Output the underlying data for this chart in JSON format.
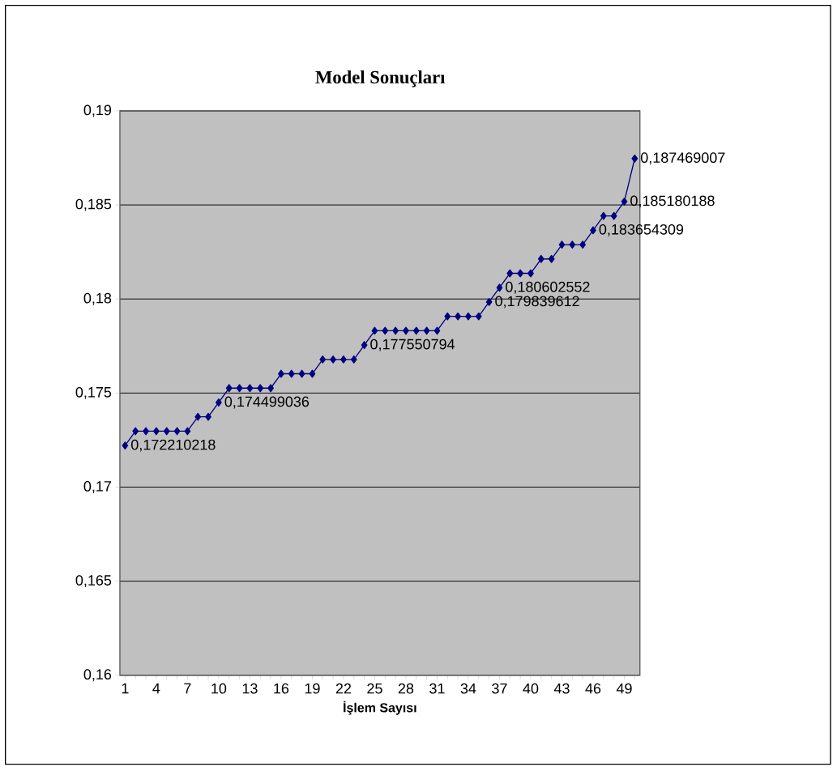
{
  "chart_data": {
    "type": "line",
    "title": "Model Sonuçları",
    "xlabel": "İşlem Sayısı",
    "categories": [
      "1",
      null,
      null,
      "4",
      null,
      null,
      "7",
      null,
      null,
      "10",
      null,
      null,
      "13",
      null,
      null,
      "16",
      null,
      null,
      "19",
      null,
      null,
      "22",
      null,
      null,
      "25",
      null,
      null,
      "28",
      null,
      null,
      "31",
      null,
      null,
      "34",
      null,
      null,
      "37",
      null,
      null,
      "40",
      null,
      null,
      "43",
      null,
      null,
      "46",
      null,
      null,
      "49",
      null
    ],
    "values": [
      0.172210218,
      0.172973157,
      0.172973157,
      0.172973157,
      0.172973157,
      0.172973157,
      0.172973157,
      0.173736097,
      0.173736097,
      0.174499036,
      0.175261975,
      0.175261975,
      0.175261975,
      0.175261975,
      0.175261975,
      0.176024915,
      0.176024915,
      0.176024915,
      0.176024915,
      0.176787854,
      0.176787854,
      0.176787854,
      0.176787854,
      0.177550794,
      0.178313733,
      0.178313733,
      0.178313733,
      0.178313733,
      0.178313733,
      0.178313733,
      0.178313733,
      0.179076673,
      0.179076673,
      0.179076673,
      0.179076673,
      0.179839612,
      0.180602552,
      0.181365491,
      0.181365491,
      0.181365491,
      0.18212843,
      0.18212843,
      0.18289137,
      0.18289137,
      0.18289137,
      0.183654309,
      0.184417249,
      0.184417249,
      0.185180188,
      0.187469007
    ],
    "value_labels": [
      "0,172210218",
      null,
      null,
      null,
      null,
      null,
      null,
      null,
      null,
      "0,174499036",
      null,
      null,
      null,
      null,
      null,
      null,
      null,
      null,
      null,
      null,
      null,
      null,
      null,
      "0,177550794",
      null,
      null,
      null,
      null,
      null,
      null,
      null,
      null,
      null,
      null,
      null,
      "0,179839612",
      "0,180602552",
      null,
      null,
      null,
      null,
      null,
      null,
      null,
      null,
      "0,183654309",
      null,
      null,
      "0,185180188",
      "0,187469007"
    ],
    "color": "#000080",
    "marker": "diamond",
    "grid": "y",
    "ylim": [
      0.16,
      0.19
    ],
    "yticks": [
      {
        "value": 0.16,
        "label": "0,16"
      },
      {
        "value": 0.165,
        "label": "0,165"
      },
      {
        "value": 0.17,
        "label": "0,17"
      },
      {
        "value": 0.175,
        "label": "0,175"
      },
      {
        "value": 0.18,
        "label": "0,18"
      },
      {
        "value": 0.185,
        "label": "0,185"
      },
      {
        "value": 0.19,
        "label": "0,19"
      }
    ]
  }
}
